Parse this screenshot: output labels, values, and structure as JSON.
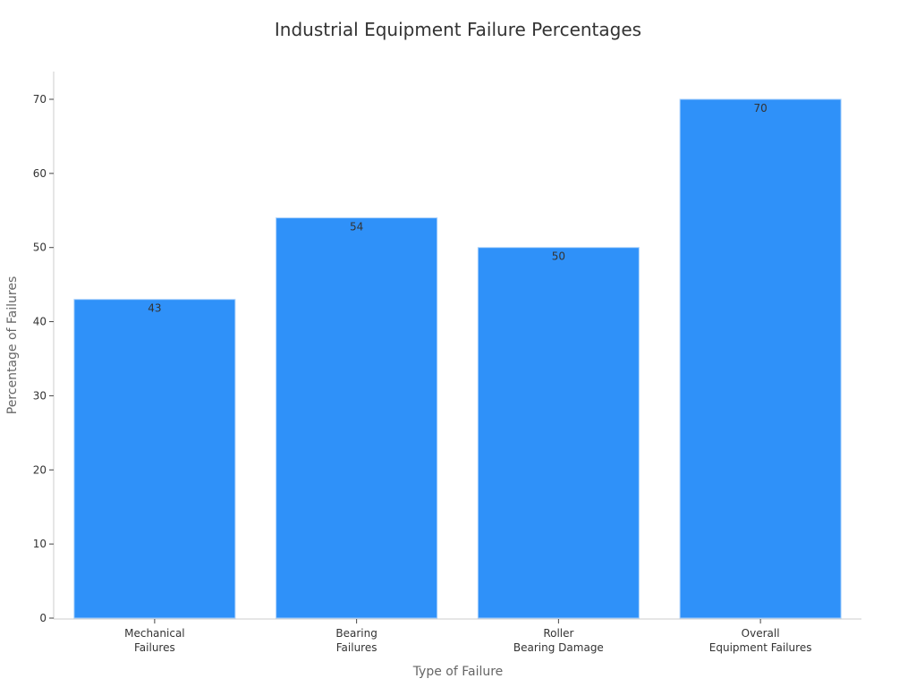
{
  "chart_data": {
    "type": "bar",
    "title": "Industrial Equipment Failure Percentages",
    "xlabel": "Type of Failure",
    "ylabel": "Percentage of Failures",
    "categories": [
      [
        "Mechanical",
        "Failures"
      ],
      [
        "Bearing",
        "Failures"
      ],
      [
        "Roller",
        "Bearing Damage"
      ],
      [
        "Overall",
        "Equipment Failures"
      ]
    ],
    "values": [
      43,
      54,
      50,
      70
    ],
    "data_labels": [
      "43",
      "54",
      "50",
      "70"
    ],
    "ylim": [
      0,
      70
    ],
    "yticks": [
      0,
      10,
      20,
      30,
      40,
      50,
      60,
      70
    ],
    "grid": false,
    "legend": "none",
    "bar_color": "#2f91f9"
  }
}
